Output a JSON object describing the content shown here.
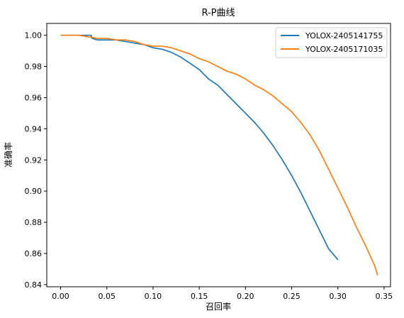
{
  "chart_data": {
    "type": "line",
    "title": "R-P曲线",
    "xlabel": "召回率",
    "ylabel": "准确率",
    "xlim": [
      -0.015,
      0.357
    ],
    "ylim": [
      0.8386,
      1.0076
    ],
    "xticks": [
      "0.00",
      "0.05",
      "0.10",
      "0.15",
      "0.20",
      "0.25",
      "0.30",
      "0.35"
    ],
    "xtick_values": [
      0.0,
      0.05,
      0.1,
      0.15,
      0.2,
      0.25,
      0.3,
      0.35
    ],
    "yticks": [
      "0.84",
      "0.86",
      "0.88",
      "0.90",
      "0.92",
      "0.94",
      "0.96",
      "0.98",
      "1.00"
    ],
    "ytick_values": [
      0.84,
      0.86,
      0.88,
      0.9,
      0.92,
      0.94,
      0.96,
      0.98,
      1.0
    ],
    "grid": false,
    "legend_position": "top-right",
    "series": [
      {
        "name": "YOLOX-2405141755",
        "color": "#1f77b4",
        "x": [
          0.0,
          0.01,
          0.02,
          0.03,
          0.033,
          0.034,
          0.04,
          0.045,
          0.05,
          0.06,
          0.07,
          0.08,
          0.09,
          0.1,
          0.11,
          0.12,
          0.13,
          0.14,
          0.15,
          0.16,
          0.17,
          0.18,
          0.19,
          0.2,
          0.21,
          0.22,
          0.23,
          0.24,
          0.25,
          0.26,
          0.27,
          0.28,
          0.29,
          0.3
        ],
        "y": [
          1.0,
          1.0,
          1.0,
          1.0,
          1.0,
          0.998,
          0.997,
          0.997,
          0.997,
          0.997,
          0.996,
          0.995,
          0.994,
          0.992,
          0.991,
          0.989,
          0.986,
          0.982,
          0.978,
          0.972,
          0.968,
          0.962,
          0.956,
          0.95,
          0.944,
          0.937,
          0.929,
          0.92,
          0.91,
          0.899,
          0.887,
          0.875,
          0.863,
          0.856
        ]
      },
      {
        "name": "YOLOX-2405171035",
        "color": "#ff7f0e",
        "x": [
          0.0,
          0.01,
          0.02,
          0.03,
          0.04,
          0.05,
          0.06,
          0.07,
          0.08,
          0.09,
          0.1,
          0.11,
          0.12,
          0.13,
          0.14,
          0.15,
          0.16,
          0.17,
          0.18,
          0.19,
          0.2,
          0.21,
          0.22,
          0.23,
          0.24,
          0.25,
          0.26,
          0.27,
          0.28,
          0.29,
          0.3,
          0.31,
          0.32,
          0.33,
          0.34,
          0.343
        ],
        "y": [
          1.0,
          1.0,
          1.0,
          0.999,
          0.998,
          0.998,
          0.997,
          0.997,
          0.996,
          0.994,
          0.993,
          0.993,
          0.992,
          0.99,
          0.988,
          0.985,
          0.983,
          0.98,
          0.977,
          0.975,
          0.972,
          0.968,
          0.965,
          0.961,
          0.956,
          0.951,
          0.944,
          0.936,
          0.926,
          0.914,
          0.902,
          0.89,
          0.877,
          0.865,
          0.852,
          0.846
        ]
      }
    ]
  }
}
